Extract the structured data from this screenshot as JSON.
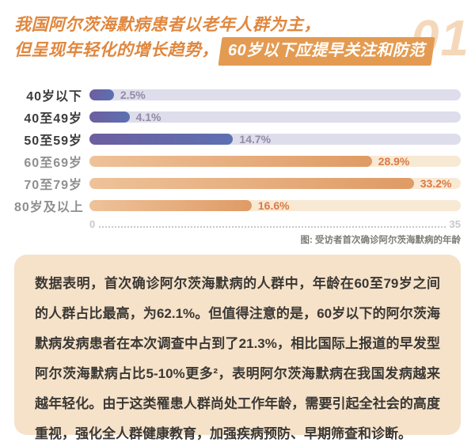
{
  "colors": {
    "title_orange": "#E0873E",
    "highlight_bg": "#E49B51",
    "highlight_text": "#FFFFFF",
    "section_number": "#F5D8BA",
    "bar_purple_start": "#6D5E9F",
    "bar_purple_end": "#5C70B2",
    "bar_orange_start": "#EEC299",
    "bar_orange_end": "#DF9B65",
    "track_purple": "#DEDDEB",
    "track_orange": "#F8E9D4",
    "value_purple": "#938BA6",
    "value_orange": "#DB7A44",
    "label_dark": "#3B3B3B",
    "label_muted": "#8F8F8F",
    "axis": "#C8C8C8",
    "caption": "#7E7C76",
    "panel_bg": "#F5E2C9",
    "panel_text": "#3B3834"
  },
  "header": {
    "title_line1": "我国阿尔茨海默病患者以老年人群为主，",
    "title_line2_prefix": "但呈现年轻化的增长趋势，",
    "title_highlight": "60岁以下应提早关注和防范",
    "section_number": "01"
  },
  "chart_data": {
    "type": "bar",
    "orientation": "horizontal",
    "title": "受访者首次确诊阿尔茨海默病的年龄",
    "categories": [
      "40岁以下",
      "40至49岁",
      "50至59岁",
      "60至69岁",
      "70至79岁",
      "80岁及以上"
    ],
    "values": [
      2.5,
      4.1,
      14.7,
      28.9,
      33.2,
      16.6
    ],
    "value_labels": [
      "2.5%",
      "4.1%",
      "14.7%",
      "28.9%",
      "33.2%",
      "16.6%"
    ],
    "bar_themes": [
      "purple",
      "purple",
      "purple",
      "orange",
      "orange",
      "orange"
    ],
    "category_muted": [
      false,
      false,
      false,
      true,
      true,
      true
    ],
    "xlabel": "",
    "ylabel": "",
    "xlim": [
      0,
      35
    ],
    "axis_ticks": [
      "0",
      "35"
    ],
    "bar_scale_max": 38,
    "grid": "dotted-baseline-only",
    "legend": "none",
    "caption": "图: 受访者首次确诊阿尔茨海默病的年龄"
  },
  "footnote": {
    "text": "数据表明，首次确诊阿尔茨海默病的人群中，年龄在60至79岁之间的人群占比最高，为62.1%。但值得注意的是，60岁以下的阿尔茨海默病发病患者在本次调查中占到了21.3%，相比国际上报道的早发型阿尔茨海默病占比5-10%更多²，表明阿尔茨海默病在我国发病越来越年轻化。由于这类罹患人群尚处工作年龄，需要引起全社会的高度重视，强化全人群健康教育，加强疾病预防、早期筛查和诊断。"
  }
}
